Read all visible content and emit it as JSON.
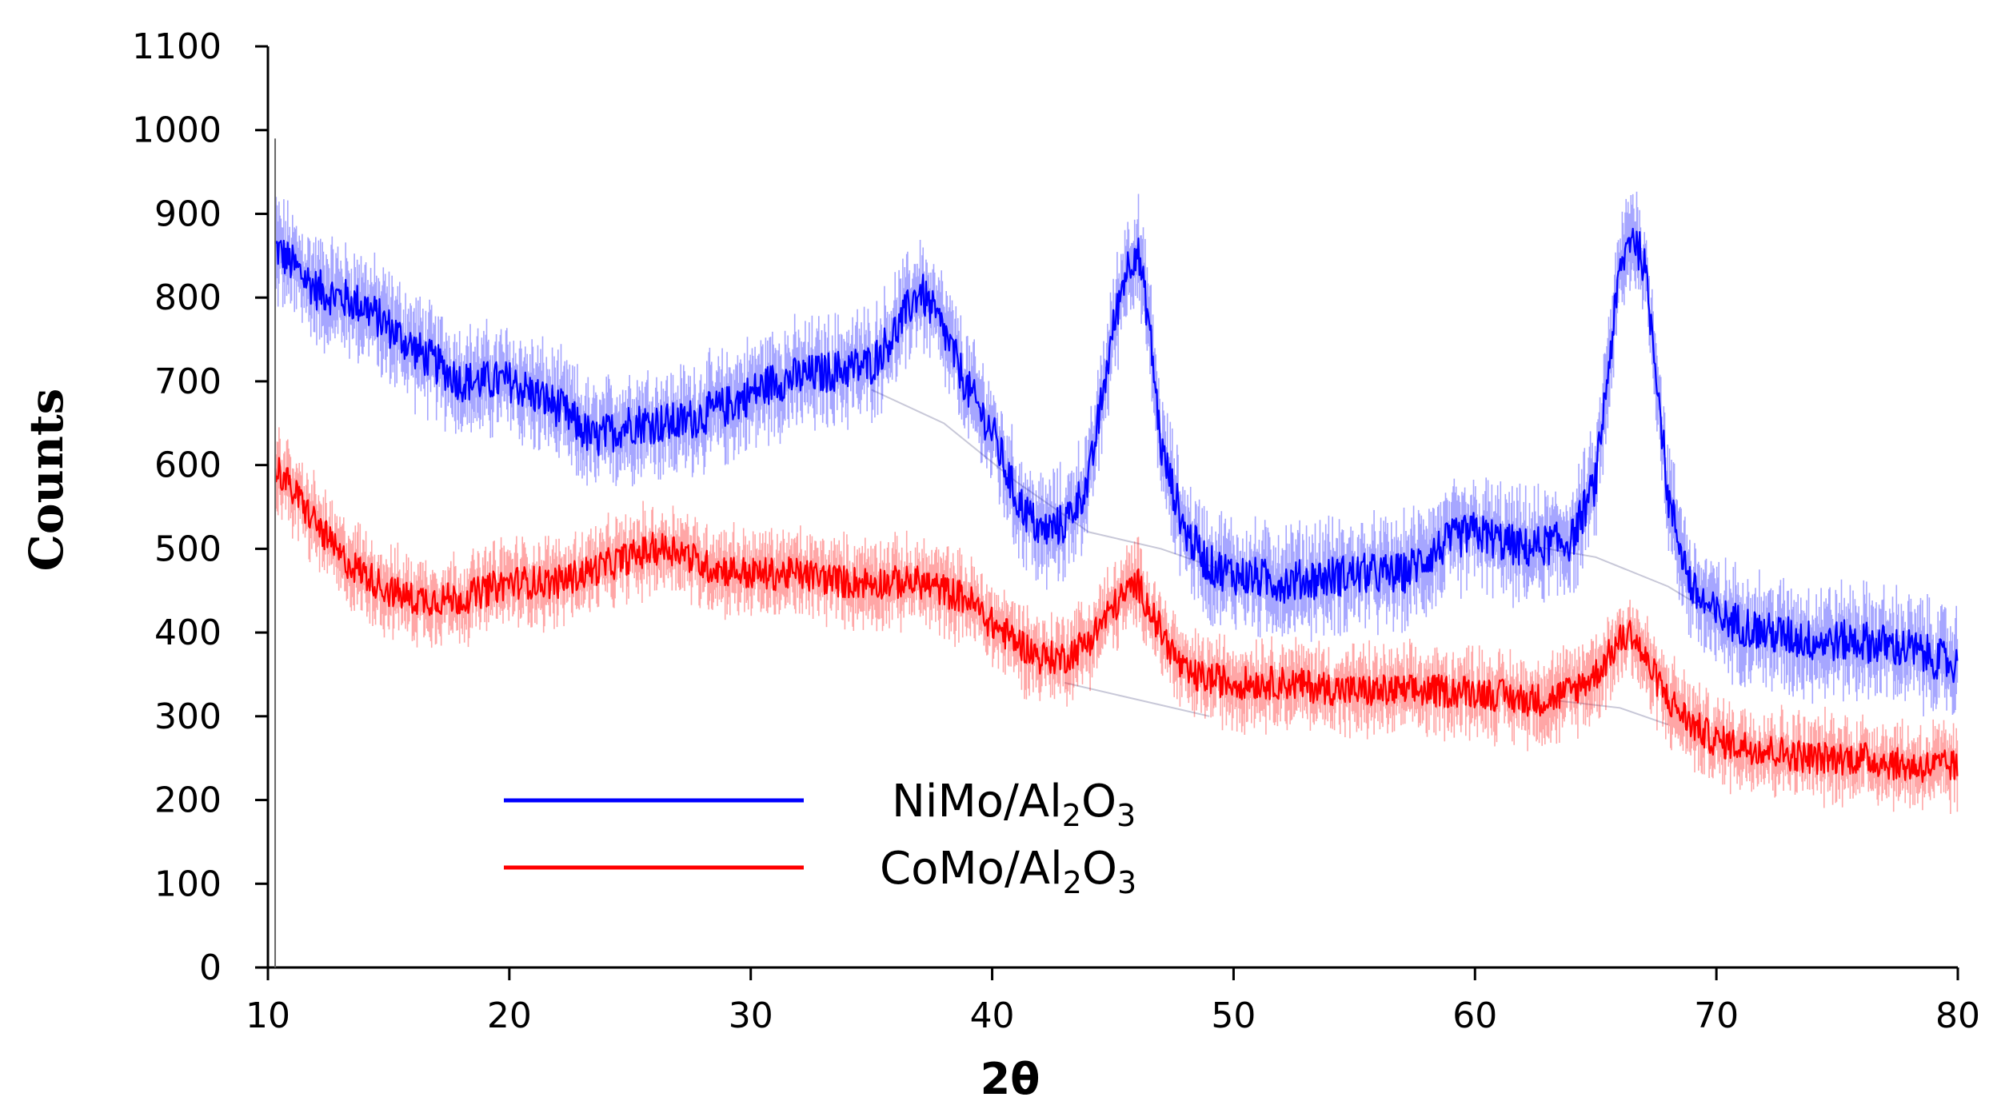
{
  "chart_data": {
    "type": "line",
    "title": "",
    "xlabel": "2θ",
    "ylabel": "Counts",
    "xlim": [
      10,
      80
    ],
    "ylim": [
      0,
      1100
    ],
    "xticks": [
      10,
      20,
      30,
      40,
      50,
      60,
      70,
      80
    ],
    "yticks": [
      0,
      100,
      200,
      300,
      400,
      500,
      600,
      700,
      800,
      900,
      1000,
      1100
    ],
    "x_tick_labels": [
      "10",
      "20",
      "30",
      "40",
      "50",
      "60",
      "70",
      "80"
    ],
    "y_tick_labels": [
      "0",
      "100",
      "200",
      "300",
      "400",
      "500",
      "600",
      "700",
      "800",
      "900",
      "1000",
      "1100"
    ],
    "grid": false,
    "legend_position": "lower-left",
    "series": [
      {
        "name": "NiMo/Al2O3",
        "legend_main": "NiMo/Al",
        "legend_sub": "2",
        "legend_tail": "O",
        "legend_sub2": "3",
        "color": "#0000ff",
        "noise": 25,
        "x": [
          10.3,
          12,
          14,
          16,
          18,
          20,
          22,
          23.5,
          25,
          27,
          29,
          31,
          33,
          35,
          36,
          37,
          38,
          39,
          40,
          41,
          42,
          43,
          44,
          45,
          45.5,
          46,
          46.5,
          47,
          48,
          49,
          50,
          52,
          55,
          57,
          59,
          60,
          62,
          64,
          65,
          65.5,
          66,
          66.5,
          67,
          67.5,
          68,
          69,
          70,
          72,
          74,
          76,
          78,
          80
        ],
        "y": [
          860,
          810,
          790,
          740,
          700,
          700,
          670,
          630,
          650,
          650,
          670,
          700,
          710,
          720,
          760,
          810,
          760,
          690,
          640,
          560,
          520,
          530,
          580,
          760,
          830,
          860,
          770,
          620,
          520,
          480,
          470,
          460,
          470,
          470,
          510,
          520,
          500,
          510,
          580,
          710,
          830,
          880,
          840,
          720,
          560,
          450,
          420,
          400,
          390,
          390,
          380,
          360
        ]
      },
      {
        "name": "CoMo/Al2O3",
        "legend_main": "CoMo/Al",
        "legend_sub": "2",
        "legend_tail": "O",
        "legend_sub2": "3",
        "color": "#ff0000",
        "noise": 20,
        "x": [
          10.3,
          11,
          12,
          13,
          14,
          15,
          16,
          18,
          20,
          22,
          24,
          26,
          27,
          28,
          30,
          32,
          34,
          36,
          37,
          38,
          39,
          40,
          41,
          42,
          43,
          44,
          45,
          46,
          47,
          48,
          50,
          52,
          55,
          58,
          60,
          62,
          63,
          64,
          65,
          66,
          66.5,
          67,
          68,
          69,
          70,
          72,
          74,
          76,
          78,
          80
        ],
        "y": [
          600,
          570,
          530,
          490,
          470,
          450,
          440,
          440,
          460,
          460,
          480,
          500,
          500,
          480,
          470,
          470,
          460,
          460,
          460,
          450,
          440,
          410,
          390,
          370,
          370,
          390,
          430,
          460,
          400,
          350,
          340,
          340,
          330,
          330,
          330,
          320,
          320,
          330,
          350,
          390,
          400,
          370,
          320,
          290,
          270,
          260,
          250,
          250,
          240,
          240
        ]
      }
    ]
  }
}
